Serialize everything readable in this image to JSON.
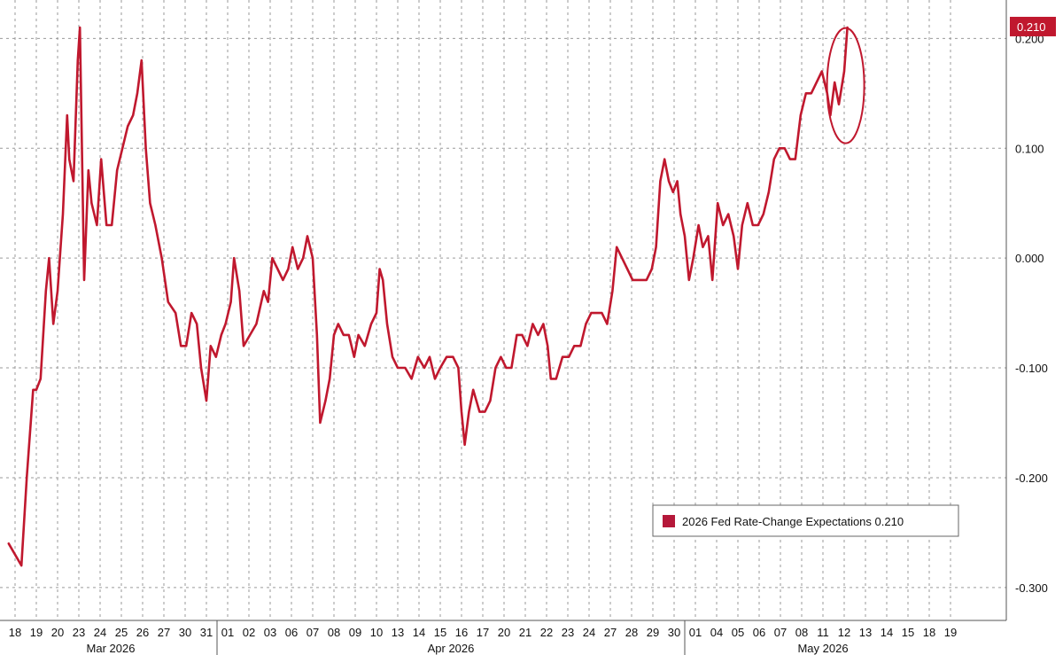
{
  "chart_data": {
    "type": "line",
    "title": "",
    "xlabel": "",
    "ylabel": "",
    "ylim": [
      -0.33,
      0.235
    ],
    "grid": true,
    "legend_position": "bottom-right",
    "line_color": "#c0182e",
    "yticks": [
      "-0.300",
      "-0.200",
      "-0.100",
      "0.000",
      "0.100",
      "0.200"
    ],
    "ytick_values": [
      -0.3,
      -0.2,
      -0.1,
      0.0,
      0.1,
      0.2
    ],
    "x_tick_labels": [
      "18",
      "19",
      "20",
      "23",
      "24",
      "25",
      "26",
      "27",
      "30",
      "31",
      "01",
      "02",
      "03",
      "06",
      "07",
      "08",
      "09",
      "10",
      "13",
      "14",
      "15",
      "16",
      "17",
      "20",
      "21",
      "22",
      "23",
      "24",
      "27",
      "28",
      "29",
      "30",
      "01",
      "04",
      "05",
      "06",
      "07",
      "08",
      "11",
      "12",
      "13",
      "14",
      "15",
      "18",
      "19"
    ],
    "months": [
      {
        "label": "Mar 2026",
        "start": 0,
        "end": 9
      },
      {
        "label": "Apr 2026",
        "start": 10,
        "end": 31
      },
      {
        "label": "May 2026",
        "start": 32,
        "end": 44
      }
    ],
    "last_value_label": "0.210",
    "legend": {
      "label": "2026 Fed Rate-Change Expectations 0.210",
      "color": "#b5183a"
    },
    "highlight": {
      "shape": "ellipse",
      "around": "last-value"
    },
    "series": [
      {
        "name": "2026 Fed Rate-Change Expectations",
        "points": [
          [
            -0.3,
            -0.26
          ],
          [
            0.3,
            -0.28
          ],
          [
            0.55,
            -0.2
          ],
          [
            0.85,
            -0.12
          ],
          [
            1.0,
            -0.12
          ],
          [
            1.2,
            -0.11
          ],
          [
            1.45,
            -0.03
          ],
          [
            1.6,
            0.0
          ],
          [
            1.8,
            -0.06
          ],
          [
            2.0,
            -0.03
          ],
          [
            2.25,
            0.04
          ],
          [
            2.45,
            0.13
          ],
          [
            2.55,
            0.09
          ],
          [
            2.75,
            0.07
          ],
          [
            2.95,
            0.18
          ],
          [
            3.05,
            0.21
          ],
          [
            3.25,
            -0.02
          ],
          [
            3.45,
            0.08
          ],
          [
            3.6,
            0.05
          ],
          [
            3.85,
            0.03
          ],
          [
            4.05,
            0.09
          ],
          [
            4.3,
            0.03
          ],
          [
            4.55,
            0.03
          ],
          [
            4.8,
            0.08
          ],
          [
            5.05,
            0.1
          ],
          [
            5.3,
            0.12
          ],
          [
            5.55,
            0.13
          ],
          [
            5.75,
            0.15
          ],
          [
            5.95,
            0.18
          ],
          [
            6.15,
            0.1
          ],
          [
            6.35,
            0.05
          ],
          [
            6.6,
            0.03
          ],
          [
            6.9,
            0.0
          ],
          [
            7.2,
            -0.04
          ],
          [
            7.55,
            -0.05
          ],
          [
            7.8,
            -0.08
          ],
          [
            8.05,
            -0.08
          ],
          [
            8.3,
            -0.05
          ],
          [
            8.55,
            -0.06
          ],
          [
            8.75,
            -0.1
          ],
          [
            9.0,
            -0.13
          ],
          [
            9.2,
            -0.08
          ],
          [
            9.45,
            -0.09
          ],
          [
            9.7,
            -0.07
          ],
          [
            9.9,
            -0.06
          ],
          [
            10.15,
            -0.04
          ],
          [
            10.3,
            0.0
          ],
          [
            10.55,
            -0.03
          ],
          [
            10.75,
            -0.08
          ],
          [
            11.05,
            -0.07
          ],
          [
            11.35,
            -0.06
          ],
          [
            11.7,
            -0.03
          ],
          [
            11.9,
            -0.04
          ],
          [
            12.1,
            0.0
          ],
          [
            12.35,
            -0.01
          ],
          [
            12.6,
            -0.02
          ],
          [
            12.85,
            -0.01
          ],
          [
            13.05,
            0.01
          ],
          [
            13.3,
            -0.01
          ],
          [
            13.55,
            0.0
          ],
          [
            13.75,
            0.02
          ],
          [
            14.0,
            0.0
          ],
          [
            14.2,
            -0.07
          ],
          [
            14.35,
            -0.15
          ],
          [
            14.6,
            -0.13
          ],
          [
            14.8,
            -0.11
          ],
          [
            15.0,
            -0.07
          ],
          [
            15.2,
            -0.06
          ],
          [
            15.45,
            -0.07
          ],
          [
            15.7,
            -0.07
          ],
          [
            15.95,
            -0.09
          ],
          [
            16.15,
            -0.07
          ],
          [
            16.45,
            -0.08
          ],
          [
            16.75,
            -0.06
          ],
          [
            17.0,
            -0.05
          ],
          [
            17.15,
            -0.01
          ],
          [
            17.3,
            -0.02
          ],
          [
            17.5,
            -0.06
          ],
          [
            17.75,
            -0.09
          ],
          [
            18.0,
            -0.1
          ],
          [
            18.35,
            -0.1
          ],
          [
            18.65,
            -0.11
          ],
          [
            18.95,
            -0.09
          ],
          [
            19.25,
            -0.1
          ],
          [
            19.5,
            -0.09
          ],
          [
            19.75,
            -0.11
          ],
          [
            20.0,
            -0.1
          ],
          [
            20.3,
            -0.09
          ],
          [
            20.6,
            -0.09
          ],
          [
            20.85,
            -0.1
          ],
          [
            21.0,
            -0.14
          ],
          [
            21.15,
            -0.17
          ],
          [
            21.35,
            -0.14
          ],
          [
            21.55,
            -0.12
          ],
          [
            21.85,
            -0.14
          ],
          [
            22.1,
            -0.14
          ],
          [
            22.35,
            -0.13
          ],
          [
            22.6,
            -0.1
          ],
          [
            22.85,
            -0.09
          ],
          [
            23.1,
            -0.1
          ],
          [
            23.35,
            -0.1
          ],
          [
            23.6,
            -0.07
          ],
          [
            23.85,
            -0.07
          ],
          [
            24.1,
            -0.08
          ],
          [
            24.35,
            -0.06
          ],
          [
            24.6,
            -0.07
          ],
          [
            24.85,
            -0.06
          ],
          [
            25.05,
            -0.08
          ],
          [
            25.2,
            -0.11
          ],
          [
            25.45,
            -0.11
          ],
          [
            25.75,
            -0.09
          ],
          [
            26.05,
            -0.09
          ],
          [
            26.3,
            -0.08
          ],
          [
            26.6,
            -0.08
          ],
          [
            26.85,
            -0.06
          ],
          [
            27.1,
            -0.05
          ],
          [
            27.35,
            -0.05
          ],
          [
            27.6,
            -0.05
          ],
          [
            27.85,
            -0.06
          ],
          [
            28.1,
            -0.03
          ],
          [
            28.3,
            0.01
          ],
          [
            28.55,
            0.0
          ],
          [
            28.8,
            -0.01
          ],
          [
            29.05,
            -0.02
          ],
          [
            29.4,
            -0.02
          ],
          [
            29.7,
            -0.02
          ],
          [
            29.95,
            -0.01
          ],
          [
            30.15,
            0.01
          ],
          [
            30.35,
            0.07
          ],
          [
            30.55,
            0.09
          ],
          [
            30.75,
            0.07
          ],
          [
            30.95,
            0.06
          ],
          [
            31.15,
            0.07
          ],
          [
            31.3,
            0.04
          ],
          [
            31.5,
            0.02
          ],
          [
            31.7,
            -0.02
          ],
          [
            31.9,
            0.0
          ],
          [
            32.15,
            0.03
          ],
          [
            32.35,
            0.01
          ],
          [
            32.6,
            0.02
          ],
          [
            32.8,
            -0.02
          ],
          [
            33.05,
            0.05
          ],
          [
            33.3,
            0.03
          ],
          [
            33.55,
            0.04
          ],
          [
            33.8,
            0.02
          ],
          [
            34.0,
            -0.01
          ],
          [
            34.2,
            0.03
          ],
          [
            34.45,
            0.05
          ],
          [
            34.7,
            0.03
          ],
          [
            34.95,
            0.03
          ],
          [
            35.2,
            0.04
          ],
          [
            35.45,
            0.06
          ],
          [
            35.7,
            0.09
          ],
          [
            35.95,
            0.1
          ],
          [
            36.2,
            0.1
          ],
          [
            36.45,
            0.09
          ],
          [
            36.7,
            0.09
          ],
          [
            36.95,
            0.13
          ],
          [
            37.2,
            0.15
          ],
          [
            37.45,
            0.15
          ],
          [
            37.7,
            0.16
          ],
          [
            37.95,
            0.17
          ],
          [
            38.2,
            0.15
          ],
          [
            38.35,
            0.13
          ],
          [
            38.55,
            0.16
          ],
          [
            38.75,
            0.14
          ],
          [
            39.0,
            0.17
          ],
          [
            39.15,
            0.21
          ]
        ]
      }
    ]
  }
}
